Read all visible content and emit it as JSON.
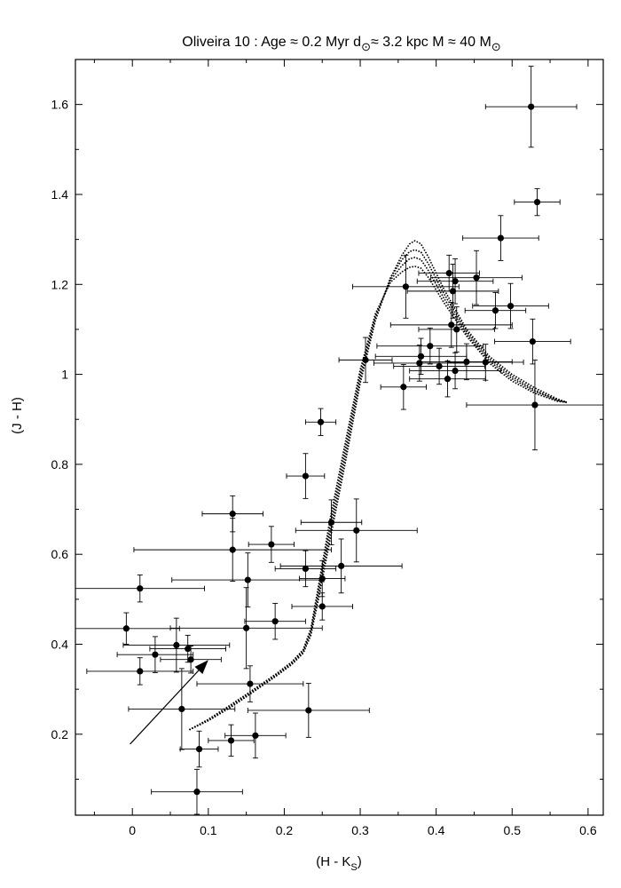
{
  "chart_data": {
    "type": "scatter",
    "title": {
      "parts": [
        {
          "text": "Oliveira 10 :  Age "
        },
        {
          "text": "≈"
        },
        {
          "text": " 0.2 Myr   d"
        },
        {
          "text": "⊙",
          "sub": true
        },
        {
          "text": "≈"
        },
        {
          "text": " 3.2 kpc   M "
        },
        {
          "text": "≈"
        },
        {
          "text": "    40 M"
        },
        {
          "text": "⊙",
          "sub": true
        }
      ]
    },
    "xlabel": {
      "main": "(H - K",
      "sub": "S",
      "tail": ")"
    },
    "ylabel": "(J - H)",
    "xlim": [
      -0.075,
      0.62
    ],
    "ylim": [
      0.02,
      1.7
    ],
    "xticks": [
      0,
      0.1,
      0.2,
      0.3,
      0.4,
      0.5,
      0.6
    ],
    "xtick_labels": [
      "0",
      "0.1",
      "0.2",
      "0.3",
      "0.4",
      "0.5",
      "0.6"
    ],
    "yticks": [
      0.2,
      0.4,
      0.6,
      0.8,
      1.0,
      1.2,
      1.4,
      1.6
    ],
    "ytick_labels": [
      "0.2",
      "0.4",
      "0.6",
      "0.8",
      "1",
      "1.2",
      "1.4",
      "1.6"
    ],
    "grid": false,
    "points": [
      {
        "x": 0.525,
        "y": 1.595,
        "xerr": 0.06,
        "yerr": 0.09
      },
      {
        "x": 0.533,
        "y": 1.383,
        "xerr": 0.03,
        "yerr": 0.03
      },
      {
        "x": 0.485,
        "y": 1.303,
        "xerr": 0.05,
        "yerr": 0.05
      },
      {
        "x": 0.417,
        "y": 1.225,
        "xerr": 0.04,
        "yerr": 0.04
      },
      {
        "x": 0.453,
        "y": 1.215,
        "xerr": 0.06,
        "yerr": 0.06
      },
      {
        "x": 0.425,
        "y": 1.207,
        "xerr": 0.05,
        "yerr": 0.05
      },
      {
        "x": 0.36,
        "y": 1.195,
        "xerr": 0.07,
        "yerr": 0.07
      },
      {
        "x": 0.422,
        "y": 1.185,
        "xerr": 0.06,
        "yerr": 0.06
      },
      {
        "x": 0.498,
        "y": 1.152,
        "xerr": 0.05,
        "yerr": 0.05
      },
      {
        "x": 0.478,
        "y": 1.142,
        "xerr": 0.04,
        "yerr": 0.04
      },
      {
        "x": 0.42,
        "y": 1.11,
        "xerr": 0.08,
        "yerr": 0.05
      },
      {
        "x": 0.427,
        "y": 1.1,
        "xerr": 0.05,
        "yerr": 0.05
      },
      {
        "x": 0.527,
        "y": 1.073,
        "xerr": 0.05,
        "yerr": 0.05
      },
      {
        "x": 0.392,
        "y": 1.063,
        "xerr": 0.07,
        "yerr": 0.04
      },
      {
        "x": 0.38,
        "y": 1.04,
        "xerr": 0.06,
        "yerr": 0.04
      },
      {
        "x": 0.307,
        "y": 1.032,
        "xerr": 0.035,
        "yerr": 0.05
      },
      {
        "x": 0.44,
        "y": 1.028,
        "xerr": 0.06,
        "yerr": 0.04
      },
      {
        "x": 0.465,
        "y": 1.027,
        "xerr": 0.05,
        "yerr": 0.04
      },
      {
        "x": 0.378,
        "y": 1.025,
        "xerr": 0.06,
        "yerr": 0.04
      },
      {
        "x": 0.404,
        "y": 1.018,
        "xerr": 0.06,
        "yerr": 0.04
      },
      {
        "x": 0.425,
        "y": 1.008,
        "xerr": 0.06,
        "yerr": 0.04
      },
      {
        "x": 0.415,
        "y": 0.99,
        "xerr": 0.05,
        "yerr": 0.04
      },
      {
        "x": 0.357,
        "y": 0.972,
        "xerr": 0.03,
        "yerr": 0.05
      },
      {
        "x": 0.53,
        "y": 0.932,
        "xerr": 0.09,
        "yerr": 0.1
      },
      {
        "x": 0.248,
        "y": 0.894,
        "xerr": 0.02,
        "yerr": 0.03
      },
      {
        "x": 0.228,
        "y": 0.774,
        "xerr": 0.025,
        "yerr": 0.05
      },
      {
        "x": 0.132,
        "y": 0.69,
        "xerr": 0.04,
        "yerr": 0.04
      },
      {
        "x": 0.262,
        "y": 0.671,
        "xerr": 0.04,
        "yerr": 0.05
      },
      {
        "x": 0.295,
        "y": 0.653,
        "xerr": 0.08,
        "yerr": 0.07
      },
      {
        "x": 0.183,
        "y": 0.622,
        "xerr": 0.03,
        "yerr": 0.04
      },
      {
        "x": 0.132,
        "y": 0.61,
        "xerr": 0.13,
        "yerr": 0.07
      },
      {
        "x": 0.275,
        "y": 0.574,
        "xerr": 0.08,
        "yerr": 0.06
      },
      {
        "x": 0.228,
        "y": 0.568,
        "xerr": 0.04,
        "yerr": 0.04
      },
      {
        "x": 0.25,
        "y": 0.546,
        "xerr": 0.03,
        "yerr": 0.04
      },
      {
        "x": 0.152,
        "y": 0.543,
        "xerr": 0.1,
        "yerr": 0.06
      },
      {
        "x": 0.01,
        "y": 0.524,
        "xerr": 0.085,
        "yerr": 0.03
      },
      {
        "x": 0.25,
        "y": 0.484,
        "xerr": 0.04,
        "yerr": 0.03
      },
      {
        "x": 0.188,
        "y": 0.451,
        "xerr": 0.04,
        "yerr": 0.04
      },
      {
        "x": 0.15,
        "y": 0.436,
        "xerr": 0.1,
        "yerr": 0.09
      },
      {
        "x": -0.008,
        "y": 0.435,
        "xerr": 0.07,
        "yerr": 0.035
      },
      {
        "x": 0.058,
        "y": 0.398,
        "xerr": 0.07,
        "yerr": 0.06
      },
      {
        "x": 0.073,
        "y": 0.39,
        "xerr": 0.05,
        "yerr": 0.03
      },
      {
        "x": 0.03,
        "y": 0.377,
        "xerr": 0.05,
        "yerr": 0.04
      },
      {
        "x": 0.077,
        "y": 0.366,
        "xerr": 0.04,
        "yerr": 0.03
      },
      {
        "x": 0.01,
        "y": 0.34,
        "xerr": 0.07,
        "yerr": 0.03
      },
      {
        "x": 0.155,
        "y": 0.312,
        "xerr": 0.07,
        "yerr": 0.04
      },
      {
        "x": 0.065,
        "y": 0.256,
        "xerr": 0.07,
        "yerr": 0.09
      },
      {
        "x": 0.232,
        "y": 0.253,
        "xerr": 0.08,
        "yerr": 0.06
      },
      {
        "x": 0.162,
        "y": 0.197,
        "xerr": 0.04,
        "yerr": 0.05
      },
      {
        "x": 0.13,
        "y": 0.186,
        "xerr": 0.03,
        "yerr": 0.035
      },
      {
        "x": 0.088,
        "y": 0.167,
        "xerr": 0.025,
        "yerr": 0.04
      },
      {
        "x": 0.085,
        "y": 0.072,
        "xerr": 0.06,
        "yerr": 0.05
      }
    ],
    "reddening_vector": {
      "from": [
        -0.003,
        0.178
      ],
      "to": [
        0.1,
        0.365
      ]
    },
    "isochrone_curves": [
      {
        "name": "curve-1",
        "x": [
          0.075,
          0.1,
          0.13,
          0.16,
          0.19,
          0.21,
          0.225,
          0.235,
          0.245,
          0.26,
          0.28,
          0.3,
          0.32,
          0.34,
          0.355,
          0.365,
          0.372,
          0.38,
          0.39,
          0.41,
          0.44,
          0.47,
          0.5,
          0.53,
          0.56,
          0.572
        ],
        "y": [
          0.21,
          0.23,
          0.26,
          0.295,
          0.33,
          0.355,
          0.38,
          0.42,
          0.5,
          0.63,
          0.8,
          0.98,
          1.12,
          1.215,
          1.265,
          1.29,
          1.297,
          1.29,
          1.26,
          1.19,
          1.1,
          1.04,
          1.0,
          0.97,
          0.945,
          0.938
        ]
      },
      {
        "name": "curve-2",
        "x": [
          0.075,
          0.1,
          0.13,
          0.16,
          0.19,
          0.21,
          0.225,
          0.235,
          0.245,
          0.26,
          0.28,
          0.3,
          0.32,
          0.34,
          0.355,
          0.365,
          0.372,
          0.38,
          0.39,
          0.41,
          0.44,
          0.47,
          0.5,
          0.53,
          0.56,
          0.572
        ],
        "y": [
          0.21,
          0.231,
          0.262,
          0.296,
          0.331,
          0.357,
          0.382,
          0.425,
          0.51,
          0.645,
          0.815,
          0.99,
          1.125,
          1.215,
          1.255,
          1.273,
          1.277,
          1.272,
          1.245,
          1.18,
          1.095,
          1.035,
          0.995,
          0.965,
          0.943,
          0.938
        ]
      },
      {
        "name": "curve-3",
        "x": [
          0.075,
          0.1,
          0.13,
          0.16,
          0.19,
          0.21,
          0.225,
          0.235,
          0.245,
          0.26,
          0.28,
          0.3,
          0.32,
          0.34,
          0.355,
          0.365,
          0.372,
          0.38,
          0.39,
          0.41,
          0.44,
          0.47,
          0.5,
          0.53,
          0.56,
          0.572
        ],
        "y": [
          0.21,
          0.232,
          0.264,
          0.298,
          0.333,
          0.359,
          0.385,
          0.43,
          0.52,
          0.66,
          0.83,
          1.0,
          1.13,
          1.21,
          1.242,
          1.257,
          1.26,
          1.255,
          1.23,
          1.17,
          1.09,
          1.03,
          0.99,
          0.962,
          0.942,
          0.938
        ]
      },
      {
        "name": "curve-4",
        "x": [
          0.075,
          0.1,
          0.13,
          0.16,
          0.19,
          0.21,
          0.225,
          0.235,
          0.245,
          0.26,
          0.28,
          0.3,
          0.32,
          0.34,
          0.355,
          0.365,
          0.372,
          0.38,
          0.39,
          0.41,
          0.44,
          0.47,
          0.5,
          0.53,
          0.56,
          0.572
        ],
        "y": [
          0.21,
          0.233,
          0.266,
          0.3,
          0.335,
          0.361,
          0.388,
          0.435,
          0.53,
          0.675,
          0.845,
          1.01,
          1.135,
          1.205,
          1.228,
          1.238,
          1.24,
          1.236,
          1.215,
          1.16,
          1.085,
          1.025,
          0.985,
          0.958,
          0.94,
          0.938
        ]
      }
    ]
  }
}
